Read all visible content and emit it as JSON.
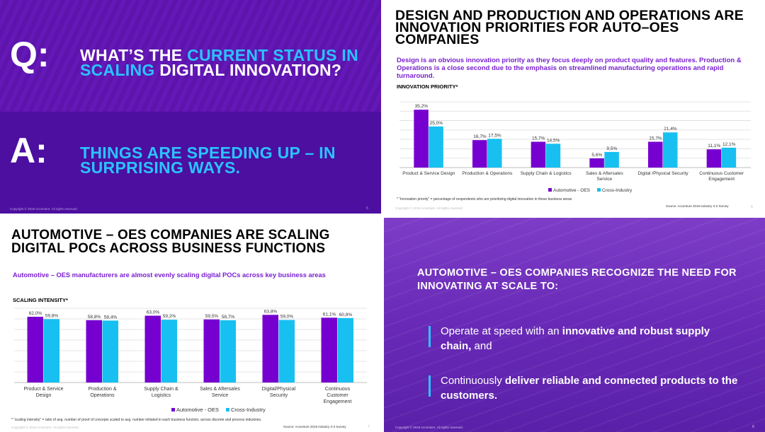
{
  "colors": {
    "purple": "#7600d0",
    "cyan": "#17c0f0",
    "dark_purple": "#5a15a8",
    "accent_text": "#7a1fd0"
  },
  "slide1": {
    "q_letter": "Q:",
    "question_pre": "WHAT’S THE ",
    "question_highlight": "CURRENT STATUS IN SCALING",
    "question_post": " DIGITAL INNOVATION?",
    "a_letter": "A:",
    "answer": "THINGS ARE SPEEDING UP – IN SURPRISING WAYS.",
    "copyright": "Copyright © 2019 Accenture. All rights reserved.",
    "page": "5"
  },
  "slide2": {
    "title": "DESIGN AND PRODUCTION AND OPERATIONS ARE INNOVATION PRIORITIES FOR AUTO–OES COMPANIES",
    "subtitle": "Design is an obvious innovation priority as they focus deeply on product quality and features. Production & Operations is a close second due to the emphasis on streamlined manufacturing operations and rapid turnaround.",
    "footnote": "* “Innovation priority” = percentage of respondents who are prioritizing digital innovation in these business areas",
    "source": "Source: Accenture 2019 Industry X.0 Survey",
    "copyright": "Copyright © 2019 Accenture. All rights reserved.",
    "page": "6"
  },
  "slide3": {
    "title": "AUTOMOTIVE – OES COMPANIES ARE SCALING DIGITAL POCs ACROSS BUSINESS FUNCTIONS",
    "subtitle": "Automotive – OES manufacturers are almost evenly scaling digital POCs across key business areas",
    "footnote": "* “scaling intensity” = ratio of avg. number of proof of concepts scaled to avg. number initiated in each business function, across discrete and process industries.",
    "source": "Source: Accenture 2019 Industry X.0 Survey",
    "copyright": "Copyright © 2019 Accenture. All rights reserved.",
    "page": "7"
  },
  "slide4": {
    "heading": "AUTOMOTIVE – OES COMPANIES RECOGNIZE THE NEED FOR INNOVATING AT SCALE TO:",
    "bullet1_pre": "Operate at speed with an ",
    "bullet1_bold": "innovative and robust supply chain,",
    "bullet1_post": " and",
    "bullet2_pre": "Continuously ",
    "bullet2_bold": "deliver reliable and connected products to the customers.",
    "copyright": "Copyright © 2019 Accenture. All rights reserved.",
    "page": "8"
  },
  "chart_data": [
    {
      "type": "bar",
      "title": "INNOVATION PRIORITY*",
      "categories": [
        [
          "Product & Service Design"
        ],
        [
          "Production & Operations"
        ],
        [
          "Supply Chain & Logistics"
        ],
        [
          "Sales & Aftersales",
          "Service"
        ],
        [
          "Digital /Physical Security"
        ],
        [
          "Continuous Customer",
          "Engagement"
        ]
      ],
      "series": [
        {
          "name": "Automotive - OES",
          "values": [
            35.2,
            16.7,
            15.7,
            5.6,
            15.7,
            11.1
          ],
          "labels": [
            "35,2%",
            "16,7%",
            "15,7%",
            "5,6%",
            "15,7%",
            "11,1%"
          ]
        },
        {
          "name": "Cross-Industry",
          "values": [
            25.0,
            17.5,
            14.5,
            9.5,
            21.4,
            12.1
          ],
          "labels": [
            "25,0%",
            "17,5%",
            "14,5%",
            "9,5%",
            "21,4%",
            "12,1%"
          ]
        }
      ],
      "ylim": [
        0,
        40
      ],
      "grid": true,
      "legend": "bottom"
    },
    {
      "type": "bar",
      "title": "SCALING INTENSITY*",
      "categories": [
        [
          "Product & Service",
          "Design"
        ],
        [
          "Production &",
          "Operations"
        ],
        [
          "Supply Chain &",
          "Logistics"
        ],
        [
          "Sales & Aftersales",
          "Service"
        ],
        [
          "Digital/Physical",
          "Security"
        ],
        [
          "Continuous",
          "Customer",
          "Engagement"
        ]
      ],
      "series": [
        {
          "name": "Automotive - OES",
          "values": [
            62.0,
            58.8,
            63.0,
            59.5,
            63.8,
            61.1
          ],
          "labels": [
            "62,0%",
            "58,8%",
            "63,0%",
            "59,5%",
            "63,8%",
            "61,1%"
          ]
        },
        {
          "name": "Cross-Industry",
          "values": [
            59.8,
            58.4,
            59.2,
            58.7,
            59.0,
            60.8
          ],
          "labels": [
            "59,8%",
            "58,4%",
            "59,2%",
            "58,7%",
            "59,0%",
            "60,8%"
          ]
        }
      ],
      "ylim": [
        0,
        70
      ],
      "grid": true,
      "legend": "bottom"
    }
  ]
}
